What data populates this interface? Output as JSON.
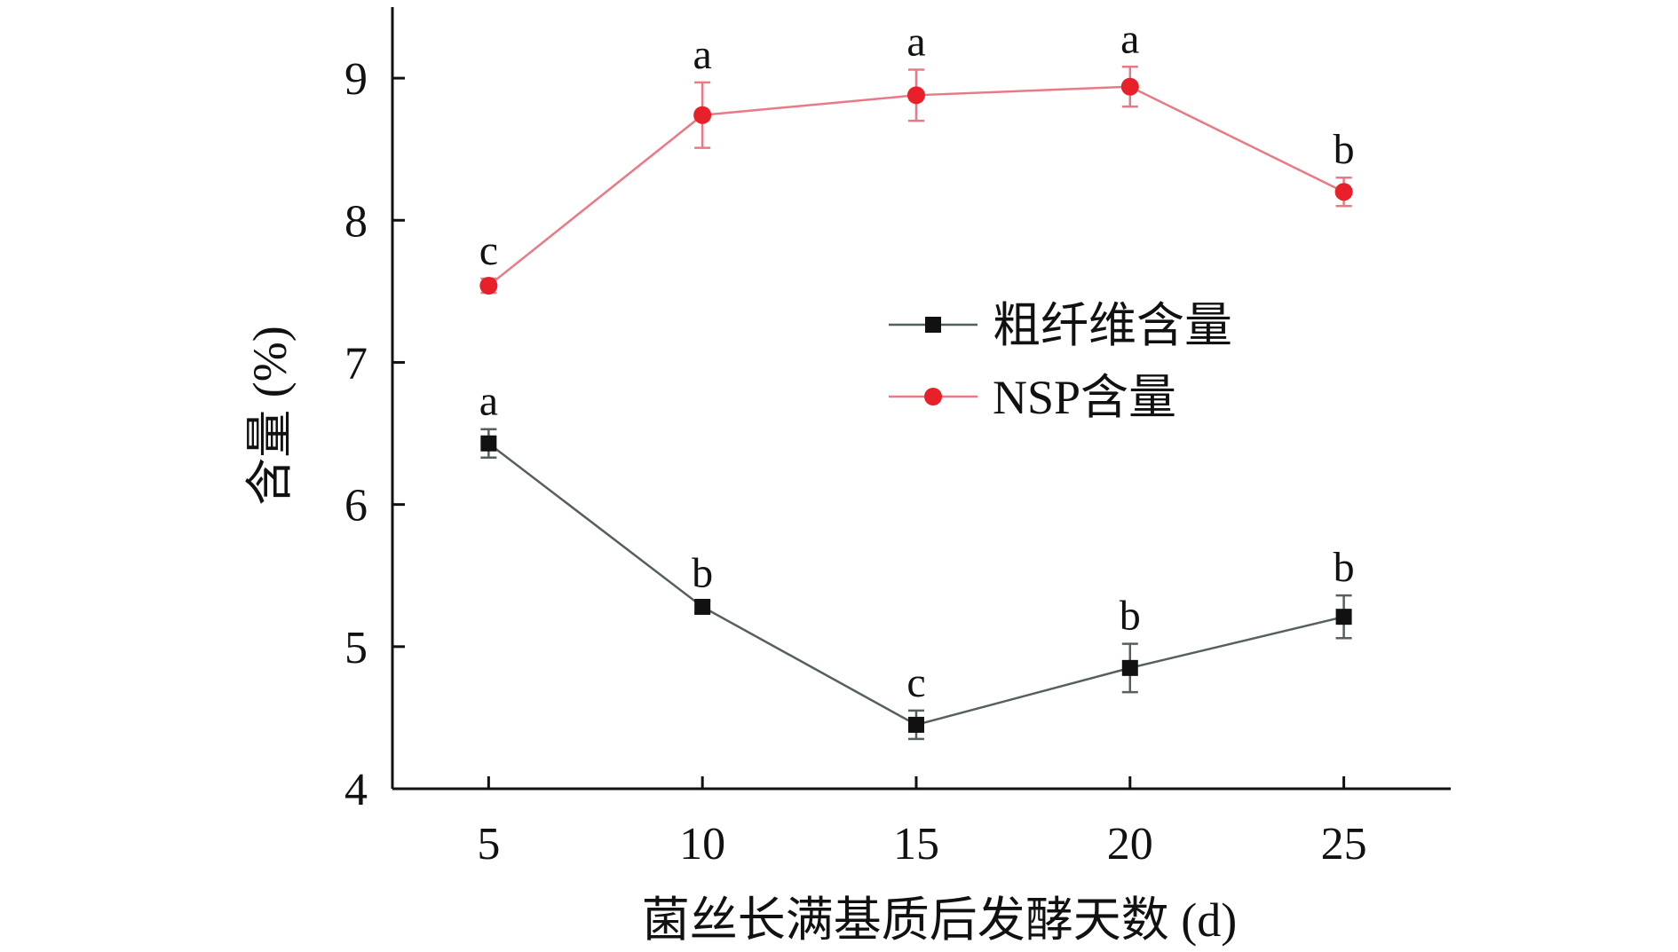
{
  "chart_data": {
    "type": "line",
    "title": "",
    "xlabel": "菌丝长满基质后发酵天数 (d)",
    "ylabel": "含量 (%)",
    "x": [
      5,
      10,
      15,
      20,
      25
    ],
    "xlim": [
      2.75,
      27.5
    ],
    "ylim": [
      4,
      9.5
    ],
    "xticks": [
      "5",
      "10",
      "15",
      "20",
      "25"
    ],
    "yticks": [
      "4",
      "5",
      "6",
      "7",
      "8",
      "9"
    ],
    "grid": false,
    "legend_position": "center-right",
    "series": [
      {
        "name": "粗纤维含量",
        "marker": "square",
        "color": "#111111",
        "line_color": "#555f5f",
        "values": [
          6.43,
          5.28,
          4.45,
          4.85,
          5.21
        ],
        "errors": [
          0.1,
          0.04,
          0.1,
          0.17,
          0.15
        ],
        "significance": [
          "a",
          "b",
          "c",
          "b",
          "b"
        ]
      },
      {
        "name": "NSP含量",
        "marker": "circle",
        "color": "#e8202a",
        "line_color": "#e87a88",
        "values": [
          7.54,
          8.74,
          8.88,
          8.94,
          8.2
        ],
        "errors": [
          0.05,
          0.23,
          0.18,
          0.14,
          0.1
        ],
        "significance": [
          "c",
          "a",
          "a",
          "a",
          "b"
        ]
      }
    ]
  }
}
